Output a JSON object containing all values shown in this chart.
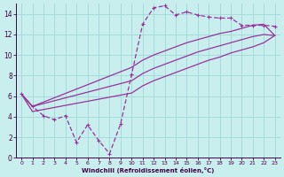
{
  "xlabel": "Windchill (Refroidissement éolien,°C)",
  "xlim": [
    -0.5,
    23.5
  ],
  "ylim": [
    0,
    15
  ],
  "xticks": [
    0,
    1,
    2,
    3,
    4,
    5,
    6,
    7,
    8,
    9,
    10,
    11,
    12,
    13,
    14,
    15,
    16,
    17,
    18,
    19,
    20,
    21,
    22,
    23
  ],
  "yticks": [
    0,
    2,
    4,
    6,
    8,
    10,
    12,
    14
  ],
  "bg_color": "#c8eeee",
  "grid_color": "#a0d8d8",
  "line_color": "#993399",
  "line1_x": [
    0,
    1,
    2,
    3,
    4,
    5,
    6,
    7,
    8,
    9,
    10,
    11,
    12,
    13,
    14,
    15,
    16,
    17,
    18,
    19,
    20,
    21,
    22,
    23
  ],
  "line1_y": [
    6.2,
    5.0,
    4.1,
    3.7,
    4.1,
    1.5,
    3.2,
    1.7,
    0.4,
    3.3,
    8.1,
    13.0,
    14.6,
    14.8,
    13.9,
    14.2,
    13.9,
    13.7,
    13.6,
    13.6,
    12.9,
    12.9,
    12.9,
    12.8
  ],
  "line2_x": [
    0,
    1,
    10,
    11,
    12,
    13,
    14,
    15,
    16,
    17,
    18,
    19,
    20,
    21,
    22,
    23
  ],
  "line2_y": [
    6.2,
    5.0,
    8.8,
    9.5,
    10.0,
    10.4,
    10.8,
    11.2,
    11.5,
    11.8,
    12.1,
    12.3,
    12.6,
    12.9,
    13.0,
    11.9
  ],
  "line3_x": [
    0,
    1,
    10,
    11,
    12,
    13,
    14,
    15,
    16,
    17,
    18,
    19,
    20,
    21,
    22,
    23
  ],
  "line3_y": [
    6.2,
    5.0,
    7.5,
    8.2,
    8.7,
    9.1,
    9.5,
    9.9,
    10.3,
    10.6,
    10.9,
    11.2,
    11.5,
    11.8,
    12.0,
    11.9
  ],
  "line4_x": [
    0,
    1,
    10,
    11,
    12,
    13,
    14,
    15,
    16,
    17,
    18,
    19,
    20,
    21,
    22,
    23
  ],
  "line4_y": [
    6.2,
    4.5,
    6.3,
    7.0,
    7.5,
    7.9,
    8.3,
    8.7,
    9.1,
    9.5,
    9.8,
    10.2,
    10.5,
    10.8,
    11.2,
    11.9
  ]
}
